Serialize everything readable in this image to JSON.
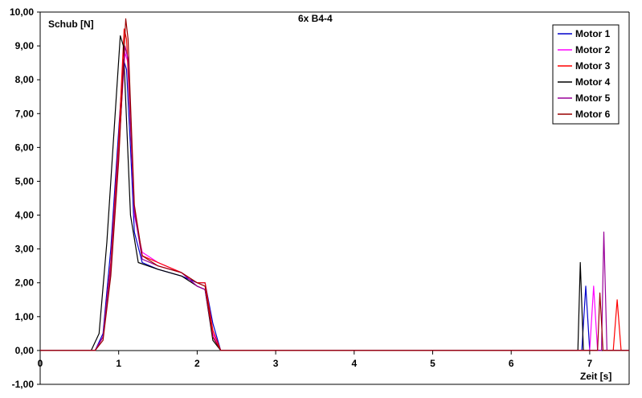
{
  "chart_data": {
    "type": "line",
    "title": "6x B4-4",
    "ylabel": "Schub [N]",
    "xlabel": "Zeit [s]",
    "xlim": [
      0,
      7.5
    ],
    "ylim": [
      -1,
      10
    ],
    "x_ticks": [
      "0",
      "1",
      "2",
      "3",
      "4",
      "5",
      "6",
      "7"
    ],
    "y_ticks": [
      "-1,00",
      "0,00",
      "1,00",
      "2,00",
      "3,00",
      "4,00",
      "5,00",
      "6,00",
      "7,00",
      "8,00",
      "9,00",
      "10,00"
    ],
    "grid": false,
    "legend_position": "top-right",
    "series": [
      {
        "name": "Motor 1",
        "color": "#0000cc",
        "x": [
          0,
          0.7,
          0.8,
          0.9,
          1.0,
          1.06,
          1.1,
          1.15,
          1.2,
          1.3,
          1.5,
          1.8,
          2.0,
          2.1,
          2.2,
          2.3,
          2.5,
          4.0,
          6.0,
          6.9,
          6.95,
          7.0,
          7.5
        ],
        "y": [
          0,
          0,
          0.5,
          3.0,
          6.5,
          8.6,
          8.3,
          6.0,
          3.5,
          2.6,
          2.4,
          2.2,
          2.0,
          2.0,
          0.8,
          0,
          0,
          0,
          0,
          0,
          1.9,
          0,
          0
        ]
      },
      {
        "name": "Motor 2",
        "color": "#ff00ff",
        "x": [
          0,
          0.7,
          0.8,
          0.9,
          1.0,
          1.08,
          1.12,
          1.2,
          1.3,
          1.5,
          1.8,
          2.0,
          2.1,
          2.2,
          2.3,
          2.5,
          4.0,
          6.0,
          7.0,
          7.05,
          7.1,
          7.5
        ],
        "y": [
          0,
          0,
          0.4,
          2.5,
          6.0,
          8.8,
          8.5,
          4.0,
          2.9,
          2.6,
          2.3,
          1.9,
          1.8,
          0.5,
          0,
          0,
          0,
          0,
          0,
          1.9,
          0,
          0
        ]
      },
      {
        "name": "Motor 3",
        "color": "#ff0000",
        "x": [
          0,
          0.7,
          0.8,
          0.9,
          1.0,
          1.07,
          1.1,
          1.2,
          1.3,
          1.5,
          1.8,
          2.0,
          2.1,
          2.2,
          2.3,
          2.5,
          4.0,
          6.0,
          7.3,
          7.35,
          7.4,
          7.5
        ],
        "y": [
          0,
          0,
          0.4,
          2.6,
          6.2,
          9.5,
          9.2,
          4.2,
          2.8,
          2.6,
          2.3,
          2.0,
          2.0,
          0.6,
          0,
          0,
          0,
          0,
          0,
          1.5,
          0,
          0
        ]
      },
      {
        "name": "Motor 4",
        "color": "#000000",
        "x": [
          0,
          0.65,
          0.75,
          0.85,
          0.95,
          1.02,
          1.06,
          1.15,
          1.25,
          1.5,
          1.8,
          2.0,
          2.1,
          2.2,
          2.3,
          2.5,
          4.0,
          6.0,
          6.85,
          6.88,
          6.92,
          7.5
        ],
        "y": [
          0,
          0,
          0.5,
          3.2,
          6.8,
          9.3,
          9.0,
          4.0,
          2.6,
          2.4,
          2.2,
          1.9,
          1.8,
          0.3,
          0,
          0,
          0,
          0,
          0,
          2.6,
          0,
          0
        ]
      },
      {
        "name": "Motor 5",
        "color": "#990099",
        "x": [
          0,
          0.7,
          0.8,
          0.9,
          1.0,
          1.08,
          1.12,
          1.2,
          1.3,
          1.5,
          1.8,
          2.0,
          2.1,
          2.2,
          2.3,
          2.5,
          4.0,
          6.0,
          7.15,
          7.18,
          7.22,
          7.5
        ],
        "y": [
          0,
          0,
          0.4,
          2.4,
          5.8,
          9.0,
          8.6,
          4.1,
          2.7,
          2.5,
          2.3,
          1.9,
          1.8,
          0.4,
          0,
          0,
          0,
          0,
          0,
          3.5,
          0,
          0
        ]
      },
      {
        "name": "Motor 6",
        "color": "#990000",
        "x": [
          0,
          0.7,
          0.8,
          0.9,
          1.0,
          1.09,
          1.12,
          1.2,
          1.3,
          1.5,
          1.8,
          2.0,
          2.1,
          2.2,
          2.3,
          2.5,
          4.0,
          6.0,
          7.1,
          7.13,
          7.17,
          7.5
        ],
        "y": [
          0,
          0,
          0.3,
          2.2,
          5.6,
          9.8,
          9.2,
          4.3,
          2.8,
          2.5,
          2.3,
          2.0,
          1.9,
          0.4,
          0,
          0,
          0,
          0,
          0,
          1.7,
          0,
          0
        ]
      }
    ]
  }
}
